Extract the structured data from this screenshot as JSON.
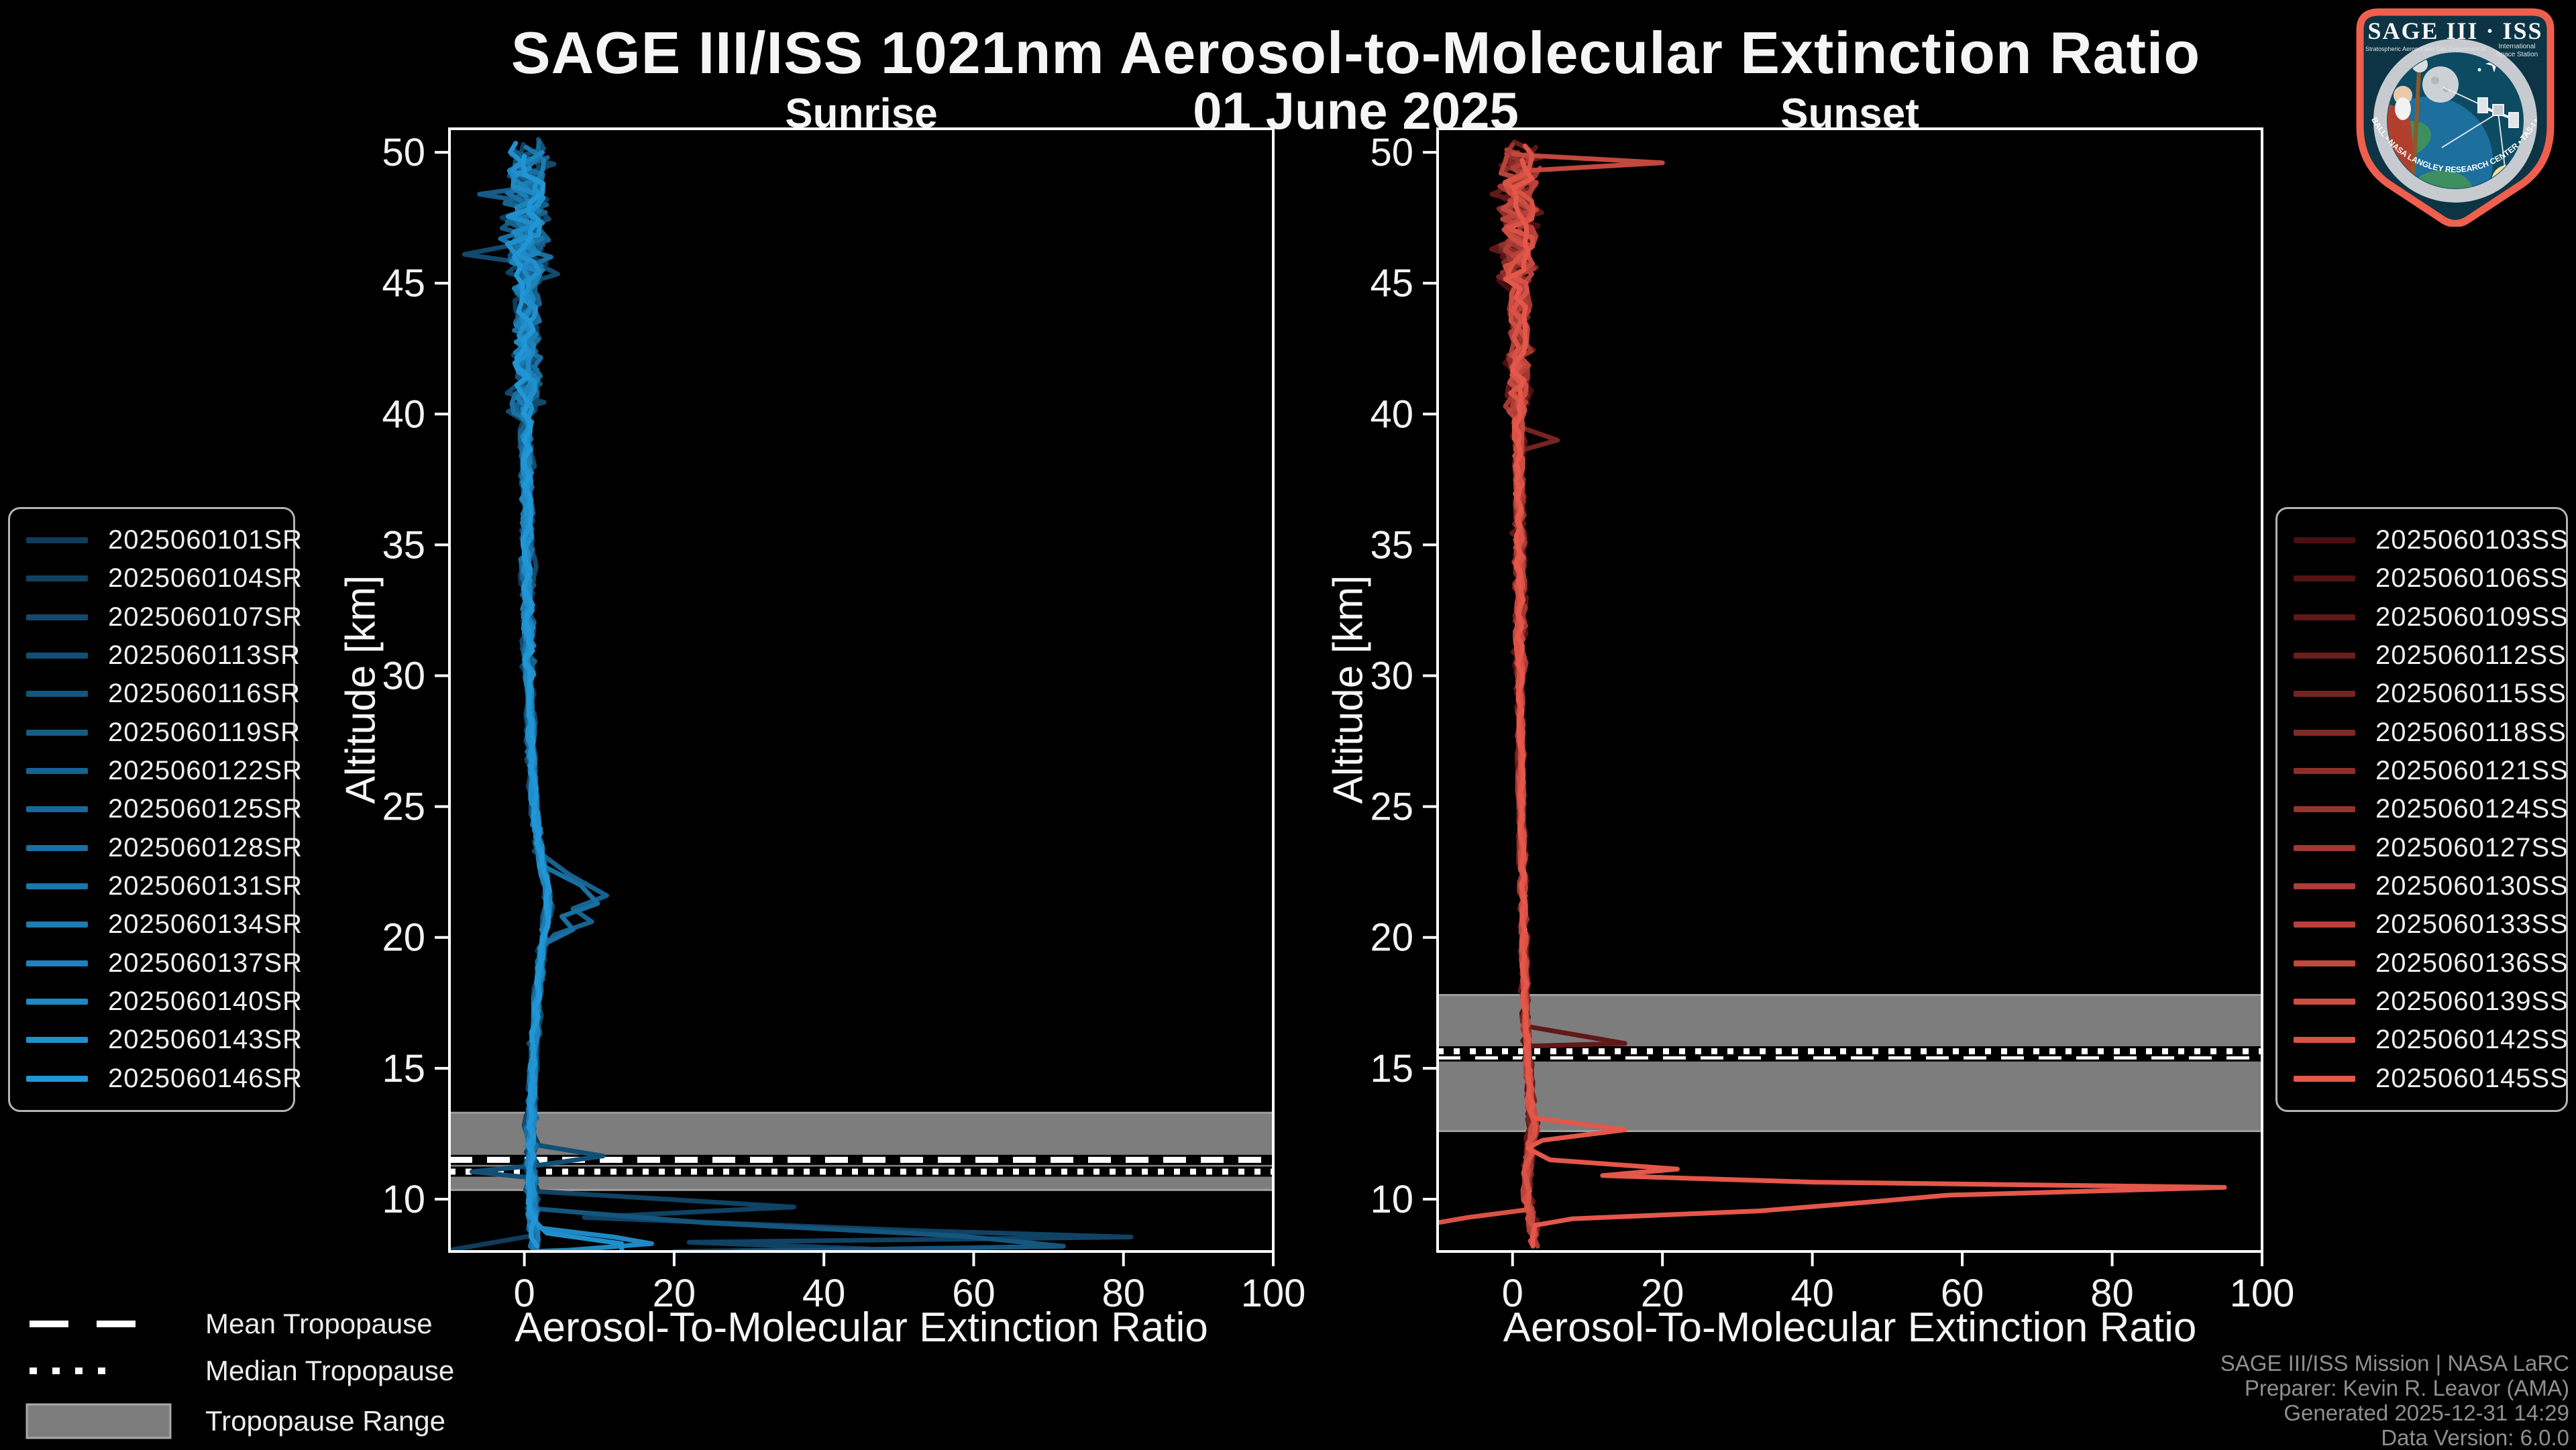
{
  "title": "SAGE III/ISS 1021nm Aerosol-to-Molecular Extinction Ratio",
  "subtitle": "01 June 2025",
  "trop_legend": {
    "items": [
      {
        "label": "Mean Tropopause",
        "swatch": "dashed-line"
      },
      {
        "label": "Median Tropopause",
        "swatch": "dotted-line"
      },
      {
        "label": "Tropopause Range",
        "swatch": "filled-band"
      }
    ]
  },
  "footer": {
    "lines": [
      "SAGE III/ISS Mission | NASA LaRC",
      "Preparer: Kevin R. Leavor (AMA)",
      "Generated 2025-12-31 14:29",
      "Data Version: 6.0.0"
    ]
  },
  "logo": {
    "title": "SAGE III · ISS",
    "subtitle_left": "Stratospheric Aerosol and Gas Experiment III",
    "subtitle_right_1": "International",
    "subtitle_right_2": "Space Station",
    "border_text": "BALL • NASA LANGLEY RESEARCH CENTER • TAS-I • ESA"
  },
  "chart_data": [
    {
      "type": "line",
      "title": "Sunrise",
      "xlabel": "Aerosol-To-Molecular Extinction Ratio",
      "ylabel": "Altitude [km]",
      "xlim": [
        -10,
        100
      ],
      "ylim": [
        8,
        50.9
      ],
      "xticks": [
        0,
        20,
        40,
        60,
        80,
        100
      ],
      "yticks": [
        10,
        15,
        20,
        25,
        30,
        35,
        40,
        45,
        50
      ],
      "grid": false,
      "legend_position": "outside-left",
      "color_ramp": [
        "#0f3c5a",
        "#2196d6"
      ],
      "noise_scale": 1.0,
      "noise_seed": 11,
      "tropopause": {
        "mean_km": 11.5,
        "median_km": 11.05,
        "range_km": [
          10.35,
          13.3
        ]
      },
      "series": [
        {
          "name": "2025060101SR"
        },
        {
          "name": "2025060104SR"
        },
        {
          "name": "2025060107SR"
        },
        {
          "name": "2025060113SR"
        },
        {
          "name": "2025060116SR"
        },
        {
          "name": "2025060119SR"
        },
        {
          "name": "2025060122SR"
        },
        {
          "name": "2025060125SR"
        },
        {
          "name": "2025060128SR"
        },
        {
          "name": "2025060131SR"
        },
        {
          "name": "2025060134SR"
        },
        {
          "name": "2025060137SR"
        },
        {
          "name": "2025060140SR"
        },
        {
          "name": "2025060143SR"
        },
        {
          "name": "2025060146SR"
        }
      ],
      "base_profile": [
        [
          50,
          0.3
        ],
        [
          46,
          0.3
        ],
        [
          42,
          0.2
        ],
        [
          38,
          0.3
        ],
        [
          34,
          0.4
        ],
        [
          30,
          0.6
        ],
        [
          27,
          0.9
        ],
        [
          25,
          1.4
        ],
        [
          23,
          2.2
        ],
        [
          21.5,
          3.2
        ],
        [
          20,
          2.6
        ],
        [
          18,
          1.8
        ],
        [
          16,
          1.3
        ],
        [
          14,
          1.0
        ],
        [
          12,
          0.9
        ],
        [
          10,
          0.9
        ],
        [
          9,
          1.2
        ],
        [
          8,
          1.3
        ]
      ],
      "tops": [
        49.6,
        50.3,
        49.9,
        50.5,
        49.2,
        50.1,
        49.8,
        50.4,
        49.5,
        50.2,
        49.7,
        50.0,
        49.4,
        50.35,
        49.85
      ],
      "bottoms": [
        8.05,
        8.0,
        9.4,
        9.2,
        8.0,
        9.0,
        8.1,
        8.5,
        8.0,
        8.7,
        8.2,
        9.0,
        8.0,
        8.0,
        8.2
      ],
      "anomalies": {
        "0": [
          [
            8.6,
            1
          ],
          [
            8.35,
            -4
          ],
          [
            8.05,
            -9.9
          ]
        ],
        "1": [
          [
            10.3,
            1.5
          ],
          [
            9.7,
            36
          ],
          [
            9.3,
            8
          ],
          [
            8.8,
            52
          ],
          [
            8.55,
            81
          ],
          [
            8.35,
            22
          ],
          [
            8.1,
            46
          ],
          [
            8.0,
            20
          ]
        ],
        "2": [
          [
            46.6,
            1
          ],
          [
            46.1,
            -8
          ],
          [
            45.7,
            2
          ]
        ],
        "3": [
          [
            12.1,
            1
          ],
          [
            11.65,
            10.5
          ],
          [
            11.3,
            2
          ],
          [
            11.05,
            -7
          ],
          [
            10.8,
            1.5
          ]
        ],
        "4": [
          [
            9.6,
            3
          ],
          [
            9.1,
            24
          ],
          [
            8.6,
            58
          ],
          [
            8.2,
            72
          ],
          [
            8.0,
            28
          ]
        ],
        "5": [
          [
            48.4,
            -6
          ],
          [
            48.0,
            3
          ]
        ],
        "6": [
          [
            23.2,
            2.2
          ],
          [
            22.4,
            6
          ],
          [
            21.6,
            11
          ],
          [
            21.1,
            6.5
          ],
          [
            20.6,
            9
          ],
          [
            20.1,
            4
          ],
          [
            19.6,
            2.5
          ]
        ],
        "8": [
          [
            22.8,
            2
          ],
          [
            22.0,
            7.5
          ],
          [
            21.3,
            9.8
          ],
          [
            20.8,
            5
          ],
          [
            20.3,
            6.5
          ],
          [
            19.8,
            3
          ]
        ],
        "12": [
          [
            8.9,
            2
          ],
          [
            8.55,
            12
          ],
          [
            8.3,
            17
          ],
          [
            8.05,
            6
          ]
        ],
        "13": [
          [
            8.7,
            3
          ],
          [
            8.3,
            13
          ],
          [
            8.0,
            13
          ]
        ]
      }
    },
    {
      "type": "line",
      "title": "Sunset",
      "xlabel": "Aerosol-To-Molecular Extinction Ratio",
      "ylabel": "Altitude [km]",
      "xlim": [
        -10,
        100
      ],
      "ylim": [
        8,
        50.9
      ],
      "xticks": [
        0,
        20,
        40,
        60,
        80,
        100
      ],
      "yticks": [
        10,
        15,
        20,
        25,
        30,
        35,
        40,
        45,
        50
      ],
      "grid": false,
      "legend_position": "outside-right",
      "color_ramp": [
        "#4a0f10",
        "#e4574a"
      ],
      "noise_scale": 0.85,
      "noise_seed": 211,
      "tropopause": {
        "mean_km": 15.45,
        "median_km": 15.65,
        "range_km": [
          12.6,
          17.8
        ]
      },
      "series": [
        {
          "name": "2025060103SS"
        },
        {
          "name": "2025060106SS"
        },
        {
          "name": "2025060109SS"
        },
        {
          "name": "2025060112SS"
        },
        {
          "name": "2025060115SS"
        },
        {
          "name": "2025060118SS"
        },
        {
          "name": "2025060121SS"
        },
        {
          "name": "2025060124SS"
        },
        {
          "name": "2025060127SS"
        },
        {
          "name": "2025060130SS"
        },
        {
          "name": "2025060133SS"
        },
        {
          "name": "2025060136SS"
        },
        {
          "name": "2025060139SS"
        },
        {
          "name": "2025060142SS"
        },
        {
          "name": "2025060145SS"
        }
      ],
      "base_profile": [
        [
          50,
          0.8
        ],
        [
          45,
          0.8
        ],
        [
          40,
          0.8
        ],
        [
          35,
          0.9
        ],
        [
          30,
          1.0
        ],
        [
          25,
          1.2
        ],
        [
          22,
          1.4
        ],
        [
          18,
          1.6
        ],
        [
          16,
          1.9
        ],
        [
          14,
          2.3
        ],
        [
          12.8,
          2.8
        ],
        [
          12,
          2.3
        ],
        [
          11,
          1.9
        ],
        [
          10,
          1.9
        ],
        [
          9,
          2.6
        ],
        [
          8,
          3.0
        ]
      ],
      "tops": [
        49.3,
        50.2,
        49.8,
        50.4,
        49.1,
        50.0,
        49.6,
        50.3,
        49.4,
        50.1,
        49.9,
        49.95,
        49.5,
        50.25,
        49.7
      ],
      "bottoms": [
        11.4,
        9.0,
        8.6,
        9.2,
        8.4,
        8.8,
        8.3,
        9.6,
        8.5,
        8.2,
        8.7,
        8.4,
        8.3,
        9.0,
        8.2
      ],
      "anomalies": {
        "2": [
          [
            16.6,
            2
          ],
          [
            15.95,
            15
          ],
          [
            15.85,
            2
          ]
        ],
        "4": [
          [
            39.5,
            1
          ],
          [
            39.0,
            6
          ],
          [
            38.6,
            1
          ]
        ],
        "11": [
          [
            49.9,
            1
          ],
          [
            49.6,
            20
          ],
          [
            49.3,
            2
          ]
        ],
        "13": [
          [
            9.6,
            2
          ],
          [
            9.3,
            -6
          ],
          [
            9.0,
            -12
          ]
        ],
        "14": [
          [
            13.1,
            3
          ],
          [
            12.65,
            15
          ],
          [
            12.25,
            4
          ],
          [
            11.95,
            2
          ],
          [
            11.5,
            5
          ],
          [
            11.15,
            22
          ],
          [
            10.9,
            12
          ],
          [
            10.65,
            40
          ],
          [
            10.45,
            95
          ],
          [
            10.15,
            58
          ],
          [
            9.9,
            48
          ],
          [
            9.55,
            33
          ],
          [
            9.25,
            8
          ],
          [
            9.0,
            3
          ]
        ]
      }
    }
  ]
}
